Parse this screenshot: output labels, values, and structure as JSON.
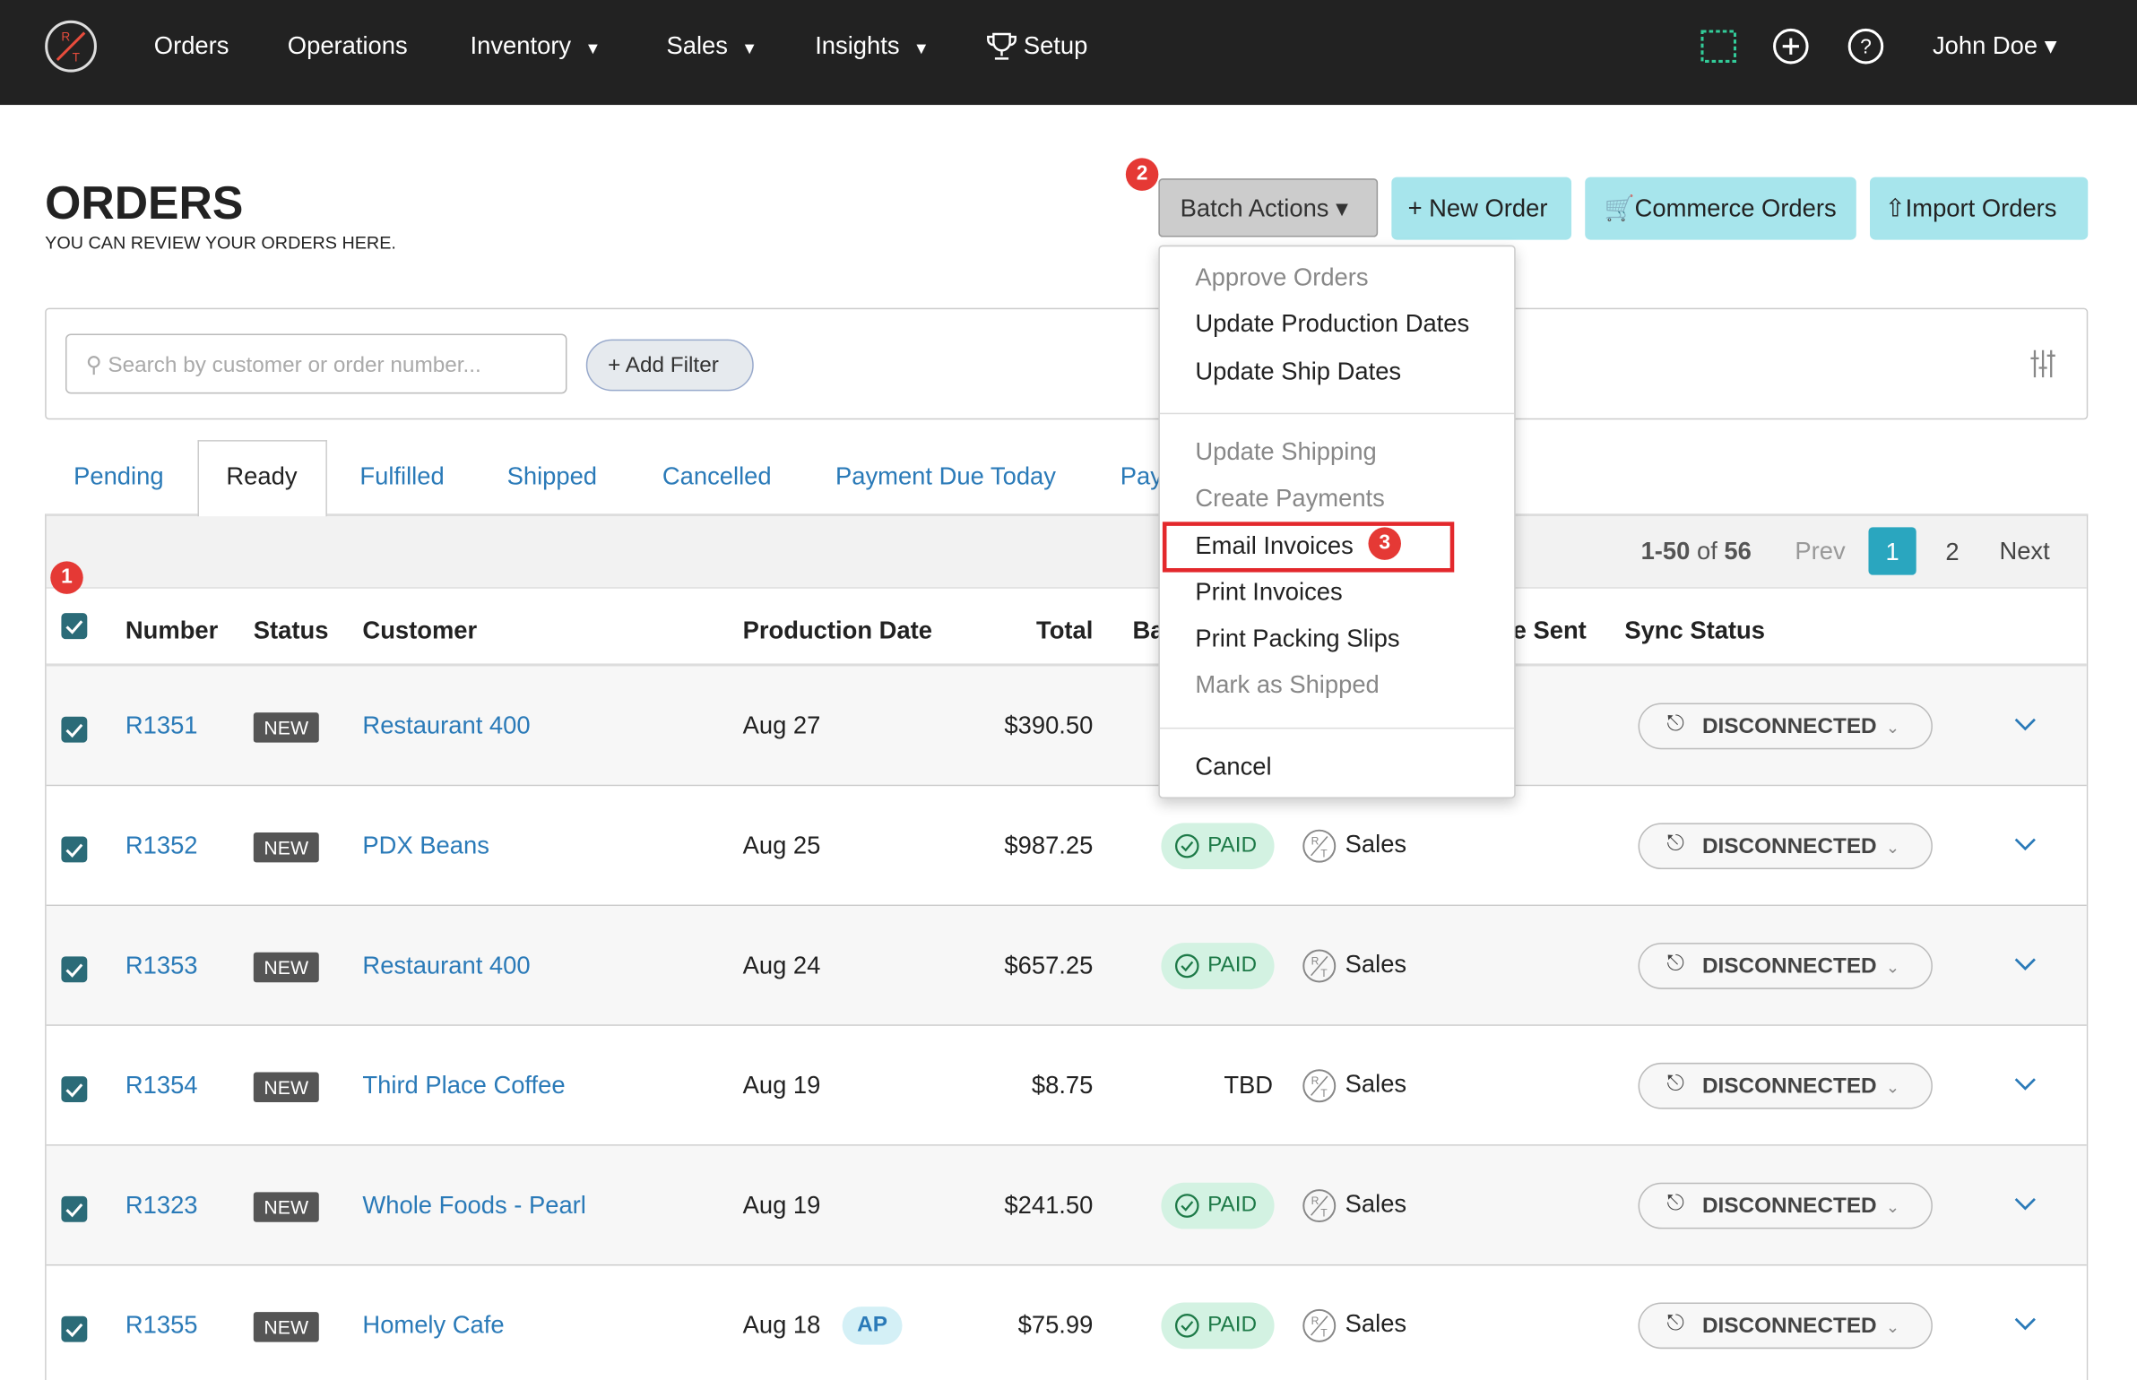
{
  "nav": {
    "items": [
      {
        "label": "Orders"
      },
      {
        "label": "Operations"
      },
      {
        "label": "Inventory",
        "dropdown": true
      },
      {
        "label": "Sales",
        "dropdown": true
      },
      {
        "label": "Insights",
        "dropdown": true
      },
      {
        "label": "Setup",
        "icon": "trophy"
      }
    ],
    "user": "John Doe"
  },
  "header": {
    "title": "ORDERS",
    "subtitle": "YOU CAN REVIEW YOUR ORDERS HERE."
  },
  "markers": [
    "1",
    "2",
    "3"
  ],
  "buttons": {
    "batch": "Batch Actions",
    "new_order": "+ New Order",
    "commerce": "Commerce Orders",
    "import": "Import Orders"
  },
  "batch_menu": {
    "groups": [
      [
        {
          "label": "Approve Orders",
          "muted": true
        },
        {
          "label": "Update Production Dates"
        },
        {
          "label": "Update Ship Dates"
        }
      ],
      [
        {
          "label": "Update Shipping",
          "muted": true
        },
        {
          "label": "Create Payments",
          "muted": true
        },
        {
          "label": "Email Invoices",
          "highlighted": true
        },
        {
          "label": "Print Invoices"
        },
        {
          "label": "Print Packing Slips"
        },
        {
          "label": "Mark as Shipped",
          "muted": true
        }
      ],
      [
        {
          "label": "Cancel"
        }
      ]
    ]
  },
  "filter": {
    "placeholder": "Search by customer or order number...",
    "add_filter": "+ Add Filter"
  },
  "tabs": {
    "items": [
      "Pending",
      "Ready",
      "Fulfilled",
      "Shipped",
      "Cancelled",
      "Payment Due Today",
      "Pay"
    ],
    "active": 1
  },
  "pagination": {
    "range": "1-50",
    "of": "of",
    "total": "56",
    "prev": "Prev",
    "pages": [
      "1",
      "2"
    ],
    "current": 0,
    "next": "Next"
  },
  "columns": [
    "Number",
    "Status",
    "Customer",
    "Production Date",
    "Total",
    "Ba",
    "e Sent",
    "Sync Status"
  ],
  "rows": [
    {
      "number": "R1351",
      "status": "NEW",
      "customer": "Restaurant 400",
      "date": "Aug 27",
      "tag": null,
      "total": "$390.50",
      "balance": null,
      "rep": null,
      "sync": "DISCONNECTED"
    },
    {
      "number": "R1352",
      "status": "NEW",
      "customer": "PDX Beans",
      "date": "Aug 25",
      "tag": null,
      "total": "$987.25",
      "balance": "PAID",
      "rep": "Sales",
      "sync": "DISCONNECTED"
    },
    {
      "number": "R1353",
      "status": "NEW",
      "customer": "Restaurant 400",
      "date": "Aug 24",
      "tag": null,
      "total": "$657.25",
      "balance": "PAID",
      "rep": "Sales",
      "sync": "DISCONNECTED"
    },
    {
      "number": "R1354",
      "status": "NEW",
      "customer": "Third Place Coffee",
      "date": "Aug 19",
      "tag": null,
      "total": "$8.75",
      "balance": "TBD",
      "rep": "Sales",
      "sync": "DISCONNECTED"
    },
    {
      "number": "R1323",
      "status": "NEW",
      "customer": "Whole Foods - Pearl",
      "date": "Aug 19",
      "tag": null,
      "total": "$241.50",
      "balance": "PAID",
      "rep": "Sales",
      "sync": "DISCONNECTED"
    },
    {
      "number": "R1355",
      "status": "NEW",
      "customer": "Homely Cafe",
      "date": "Aug 18",
      "tag": "AP",
      "total": "$75.99",
      "balance": "PAID",
      "rep": "Sales",
      "sync": "DISCONNECTED"
    }
  ]
}
